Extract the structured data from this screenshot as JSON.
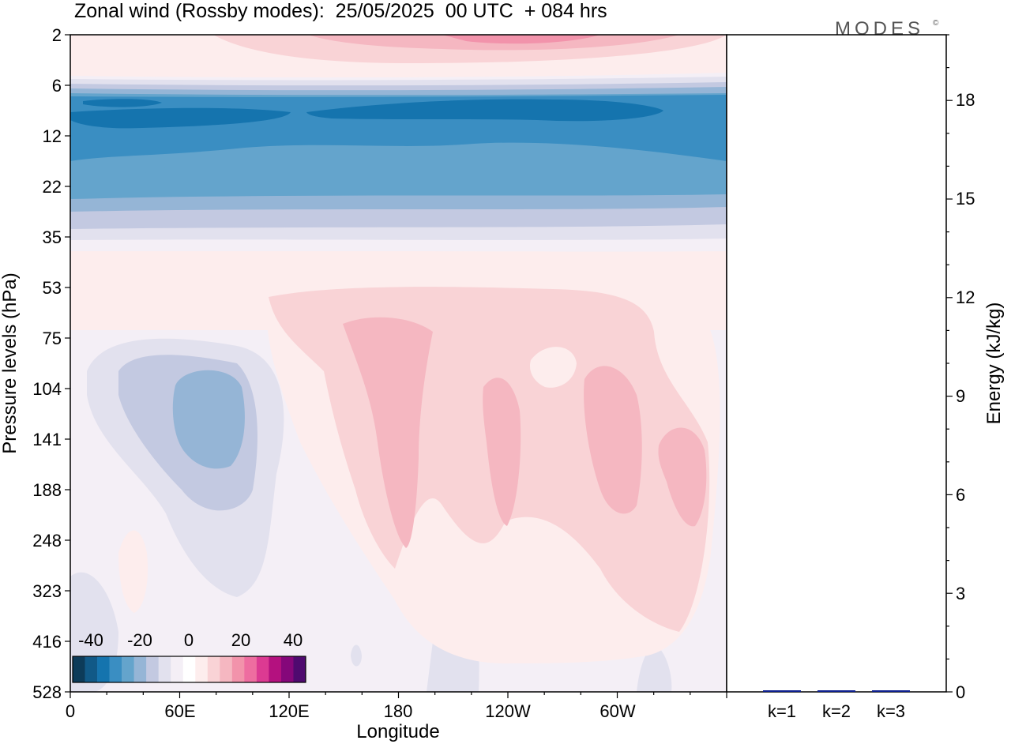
{
  "header": {
    "title": "Zonal wind (Rossby modes):  25/05/2025  00 UTC  + 084 hrs",
    "brand": "MODES",
    "brand_mark": "©"
  },
  "chart_data": [
    {
      "type": "heatmap",
      "title": "Zonal wind (Rossby modes):  25/05/2025  00 UTC  + 084 hrs",
      "xlabel": "Longitude",
      "ylabel": "Pressure levels (hPa)",
      "x_ticks": [
        "0",
        "60E",
        "120E",
        "180",
        "120W",
        "60W"
      ],
      "y_ticks": [
        "2",
        "6",
        "12",
        "22",
        "35",
        "53",
        "75",
        "104",
        "141",
        "188",
        "248",
        "323",
        "416",
        "528"
      ],
      "y_scale": "log (pressure, top = 2 hPa)",
      "colorbar": {
        "tick_labels": [
          "-40",
          "-20",
          "0",
          "20",
          "40"
        ],
        "levels": [
          -45,
          -40,
          -35,
          -30,
          -25,
          -20,
          -15,
          -10,
          -5,
          0,
          5,
          10,
          15,
          20,
          25,
          30,
          35,
          40,
          45
        ],
        "colors": [
          "#0d3b59",
          "#115987",
          "#1574ae",
          "#3a8ec2",
          "#64a4cc",
          "#95b5d6",
          "#c3c9e1",
          "#e2e1ee",
          "#f4eff6",
          "#ffffff",
          "#fdeded",
          "#f9d3d6",
          "#f5b7c1",
          "#f293ab",
          "#ee6da0",
          "#dc3a92",
          "#b4117f",
          "#85077a",
          "#4f0a6f"
        ]
      },
      "features": [
        {
          "label": "easterly core near 8-16 hPa, all longitudes",
          "value": -30
        },
        {
          "label": "easterly band near 16-28 hPa",
          "value": -20
        },
        {
          "label": "westerly cap near 2-3 hPa, 150E-90W",
          "value": 15
        },
        {
          "label": "easterly cell near 110-150 hPa, 60E-90E",
          "value": -15
        },
        {
          "label": "westerly cells near 75-250 hPa, 150E-30W",
          "value": 10
        }
      ]
    },
    {
      "type": "bar",
      "categories": [
        "k=1",
        "k=2",
        "k=3"
      ],
      "values": [
        0.03,
        0.02,
        0.02
      ],
      "ylabel": "Energy (kJ/kg)",
      "ylim": [
        0,
        20
      ],
      "y_ticks": [
        "0",
        "3",
        "6",
        "9",
        "12",
        "15",
        "18"
      ],
      "bar_color": "#0d1f8f"
    }
  ]
}
